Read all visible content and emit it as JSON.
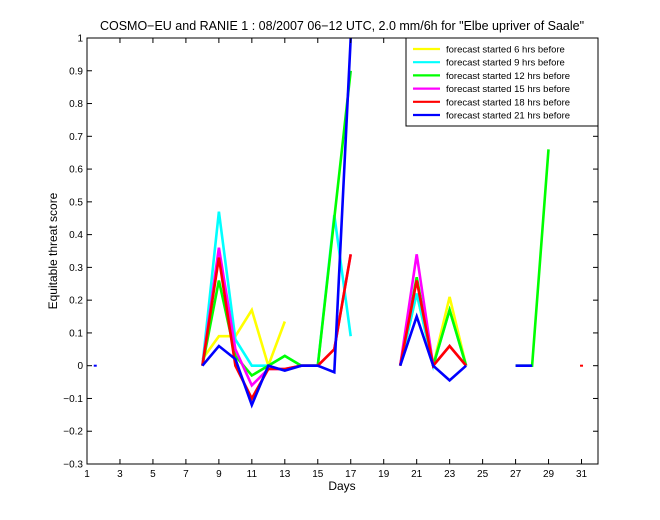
{
  "chart_data": {
    "type": "line",
    "title": "COSMO−EU and RANIE 1 : 08/2007 06−12 UTC, 2.0 mm/6h for \"Elbe upriver of Saale\"",
    "xlabel": "Days",
    "ylabel": "Equitable threat score",
    "xlim": [
      1,
      32
    ],
    "ylim": [
      -0.3,
      1
    ],
    "xticks": [
      1,
      3,
      5,
      7,
      9,
      11,
      13,
      15,
      17,
      19,
      21,
      23,
      25,
      27,
      29,
      31
    ],
    "yticks": [
      -0.3,
      -0.2,
      -0.1,
      0,
      0.1,
      0.2,
      0.3,
      0.4,
      0.5,
      0.6,
      0.7,
      0.8,
      0.9,
      1
    ],
    "ytick_labels": [
      "−0.3",
      "−0.2",
      "−0.1",
      "0",
      "0.1",
      "0.2",
      "0.3",
      "0.4",
      "0.5",
      "0.6",
      "0.7",
      "0.8",
      "0.9",
      "1"
    ],
    "grid": false,
    "legend_position": "top-right",
    "series": [
      {
        "name": "forecast started 6 hrs before",
        "color": "#ffff00",
        "segments": [
          [
            [
              8,
              0.02
            ],
            [
              9,
              0.09
            ],
            [
              10,
              0.09
            ],
            [
              11,
              0.17
            ],
            [
              12,
              0.0
            ],
            [
              13,
              0.135
            ]
          ],
          [
            [
              20,
              0.0
            ],
            [
              21,
              0.22
            ],
            [
              22,
              0.0
            ],
            [
              23,
              0.21
            ],
            [
              24,
              0.0
            ]
          ]
        ]
      },
      {
        "name": "forecast started 9 hrs before",
        "color": "#00ffff",
        "segments": [
          [
            [
              8,
              0.0
            ],
            [
              9,
              0.47
            ],
            [
              10,
              0.08
            ],
            [
              11,
              0.0
            ],
            [
              12,
              0.0
            ],
            [
              13,
              0.03
            ],
            [
              14,
              0.0
            ],
            [
              15,
              0.0
            ],
            [
              16,
              0.46
            ],
            [
              17,
              0.09
            ]
          ],
          [
            [
              20,
              0.0
            ],
            [
              21,
              0.22
            ],
            [
              22,
              0.0
            ],
            [
              23,
              0.17
            ],
            [
              24,
              0.0
            ]
          ]
        ]
      },
      {
        "name": "forecast started 12 hrs before",
        "color": "#00ff00",
        "segments": [
          [
            [
              8,
              0.0
            ],
            [
              9,
              0.26
            ],
            [
              10,
              0.03
            ],
            [
              11,
              -0.03
            ],
            [
              12,
              0.0
            ],
            [
              13,
              0.03
            ],
            [
              14,
              0.0
            ],
            [
              15,
              0.0
            ],
            [
              16,
              0.45
            ],
            [
              17,
              0.9
            ]
          ],
          [
            [
              20,
              0.0
            ],
            [
              21,
              0.27
            ],
            [
              22,
              0.0
            ],
            [
              23,
              0.17
            ],
            [
              24,
              0.0
            ]
          ],
          [
            [
              27,
              0.0
            ],
            [
              28,
              0.0
            ],
            [
              29,
              0.66
            ]
          ]
        ]
      },
      {
        "name": "forecast started 15 hrs before",
        "color": "#ff00ff",
        "segments": [
          [
            [
              8,
              0.0
            ],
            [
              9,
              0.36
            ],
            [
              10,
              0.05
            ],
            [
              11,
              -0.06
            ],
            [
              12,
              -0.01
            ],
            [
              13,
              -0.01
            ],
            [
              14,
              0.0
            ],
            [
              15,
              0.0
            ],
            [
              16,
              0.05
            ],
            [
              17,
              0.34
            ]
          ],
          [
            [
              20,
              0.0
            ],
            [
              21,
              0.34
            ],
            [
              22,
              0.0
            ],
            [
              23,
              0.06
            ],
            [
              24,
              0.0
            ]
          ]
        ]
      },
      {
        "name": "forecast started 18 hrs before",
        "color": "#ff0000",
        "segments": [
          [
            [
              8,
              0.0
            ],
            [
              9,
              0.33
            ],
            [
              10,
              0.0
            ],
            [
              11,
              -0.1
            ],
            [
              12,
              -0.01
            ],
            [
              13,
              -0.01
            ],
            [
              14,
              0.0
            ],
            [
              15,
              0.0
            ],
            [
              16,
              0.05
            ],
            [
              17,
              0.34
            ]
          ],
          [
            [
              20,
              0.0
            ],
            [
              21,
              0.26
            ],
            [
              22,
              0.0
            ],
            [
              23,
              0.06
            ],
            [
              24,
              0.0
            ]
          ],
          [
            [
              31,
              0.0
            ]
          ]
        ]
      },
      {
        "name": "forecast started 21 hrs before",
        "color": "#0000ff",
        "segments": [
          [
            [
              1.5,
              0.0
            ]
          ],
          [
            [
              8,
              0.0
            ],
            [
              9,
              0.06
            ],
            [
              10,
              0.02
            ],
            [
              11,
              -0.12
            ],
            [
              12,
              0.0
            ],
            [
              13,
              -0.015
            ],
            [
              14,
              0.0
            ],
            [
              15,
              0.0
            ],
            [
              16,
              -0.02
            ],
            [
              17,
              1.0
            ]
          ],
          [
            [
              20,
              0.0
            ],
            [
              21,
              0.15
            ],
            [
              22,
              0.0
            ],
            [
              23,
              -0.045
            ],
            [
              24,
              0.0
            ]
          ],
          [
            [
              27,
              0.0
            ],
            [
              28,
              0.0
            ]
          ]
        ]
      }
    ]
  }
}
